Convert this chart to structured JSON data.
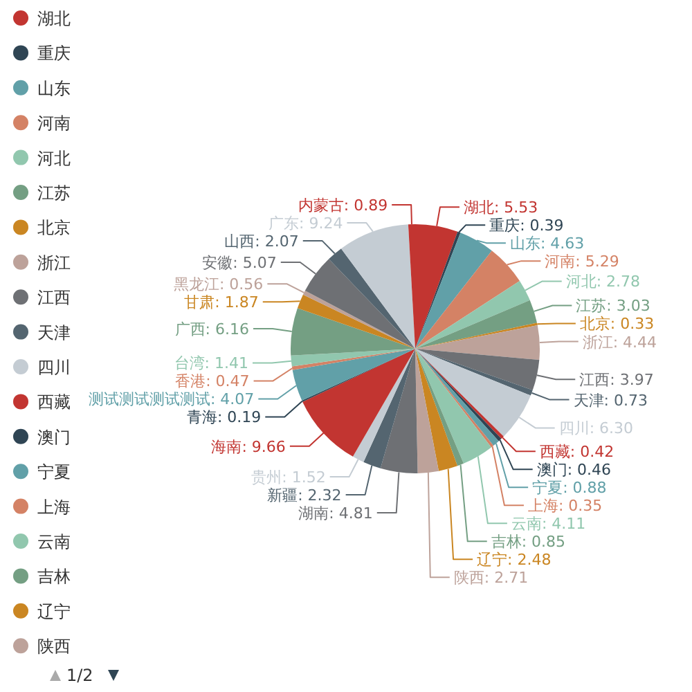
{
  "chart_data": {
    "type": "pie",
    "legend": "left",
    "categories": [
      "湖北",
      "重庆",
      "山东",
      "河南",
      "河北",
      "江苏",
      "北京",
      "浙江",
      "江西",
      "天津",
      "四川",
      "西藏",
      "澳门",
      "宁夏",
      "上海",
      "云南",
      "吉林",
      "辽宁",
      "陕西",
      "湖南",
      "新疆",
      "贵州",
      "海南",
      "青海",
      "测试测试测试测试",
      "香港",
      "台湾",
      "广西",
      "甘肃",
      "黑龙江",
      "安徽",
      "山西",
      "广东",
      "内蒙古"
    ],
    "values": [
      5.53,
      0.39,
      4.63,
      5.29,
      2.78,
      3.03,
      0.33,
      4.44,
      3.97,
      0.73,
      6.3,
      0.42,
      0.46,
      0.88,
      0.35,
      4.11,
      0.85,
      2.48,
      2.71,
      4.81,
      2.32,
      1.52,
      9.66,
      0.19,
      4.07,
      0.47,
      1.41,
      6.16,
      1.87,
      0.56,
      5.07,
      2.07,
      9.24,
      0.89
    ],
    "value_labels": [
      ": 5.53",
      ": 0.39",
      ": 4.63",
      ": 5.29",
      ": 2.78",
      ": 3.03",
      ": 0.33",
      ": 4.44",
      ": 3.97",
      ": 0.73",
      ": 6.30",
      ": 0.42",
      ": 0.46",
      ": 0.88",
      ": 0.35",
      ": 4.11",
      ": 0.85",
      ": 2.48",
      ": 2.71",
      ": 4.81",
      ": 2.32",
      ": 1.52",
      ": 9.66",
      ": 0.19",
      ": 4.07",
      ": 0.47",
      ": 1.41",
      ": 6.16",
      ": 1.87",
      ": 0.56",
      ": 5.07",
      ": 2.07",
      ": 9.24",
      ": 0.89"
    ],
    "colors": [
      "#c23531",
      "#2f4554",
      "#61a0a8",
      "#d48265",
      "#91c7ae",
      "#749f83",
      "#ca8622",
      "#bda29a",
      "#6e7074",
      "#546570",
      "#c4ccd3",
      "#c23531",
      "#2f4554",
      "#61a0a8",
      "#d48265",
      "#91c7ae",
      "#749f83",
      "#ca8622",
      "#bda29a",
      "#6e7074",
      "#546570",
      "#c4ccd3",
      "#c23531",
      "#2f4554",
      "#61a0a8",
      "#d48265",
      "#91c7ae",
      "#749f83",
      "#ca8622",
      "#bda29a",
      "#6e7074",
      "#546570",
      "#c4ccd3",
      "#c23531"
    ],
    "annotations": [
      "1/2"
    ]
  }
}
